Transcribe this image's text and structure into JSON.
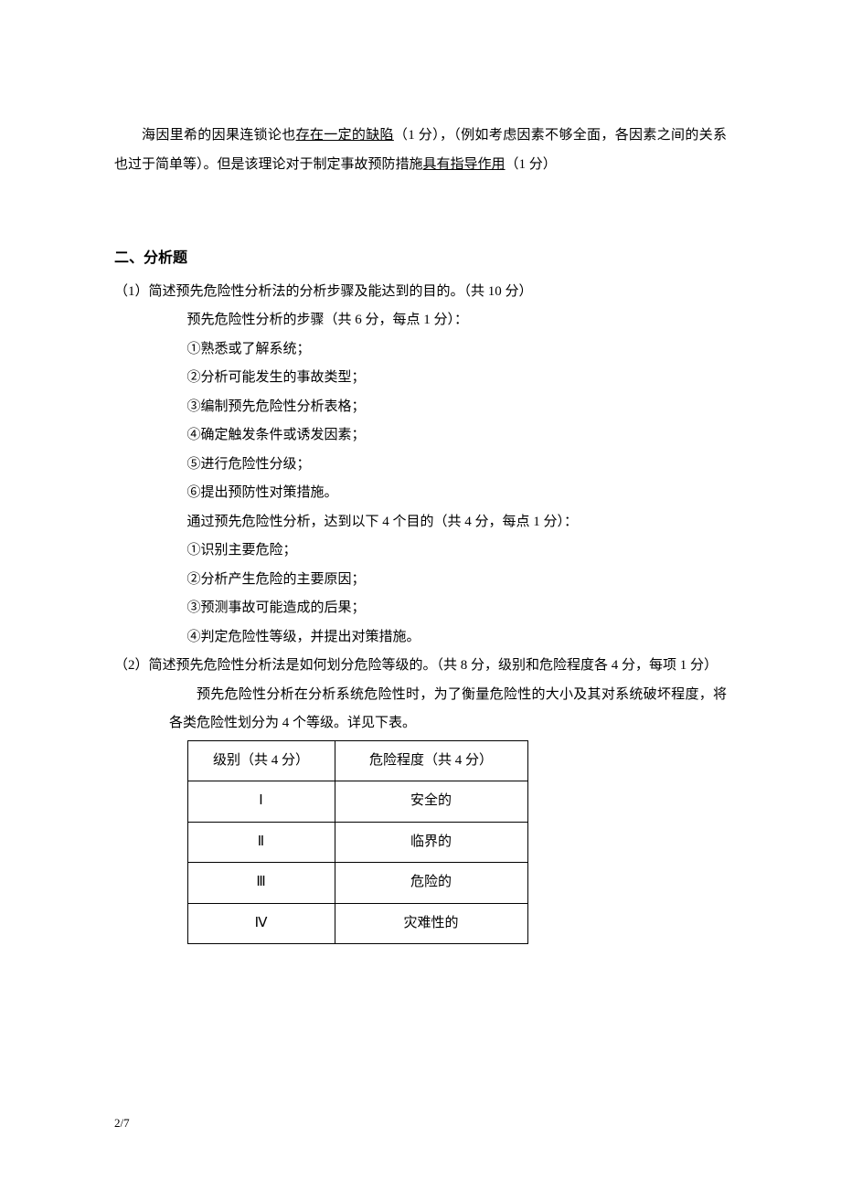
{
  "intro": {
    "prefix": "海因里希的因果连锁论也",
    "underline1": "存在一定的缺陷",
    "mid1": "（1 分），（例如考虑因素不够全面，各因素之间的关系也过于简单等）。但是该理论对于制定事故预防措施",
    "underline2": "具有指导作用",
    "tail": "（1 分）"
  },
  "section2_title": "二、分析题",
  "q1": {
    "prompt": "（1）简述预先危险性分析法的分析步骤及能达到的目的。（共 10 分）",
    "steps_header": "预先危险性分析的步骤（共 6 分，每点 1 分）：",
    "steps": [
      "①熟悉或了解系统；",
      "②分析可能发生的事故类型；",
      "③编制预先危险性分析表格；",
      "④确定触发条件或诱发因素；",
      "⑤进行危险性分级；",
      "⑥提出预防性对策措施。"
    ],
    "goals_header": "通过预先危险性分析，达到以下 4 个目的（共 4 分，每点 1 分）：",
    "goals": [
      "①识别主要危险；",
      "②分析产生危险的主要原因；",
      "③预测事故可能造成的后果；",
      "④判定危险性等级，并提出对策措施。"
    ]
  },
  "q2": {
    "prompt": "（2）简述预先危险性分析法是如何划分危险等级的。（共 8 分，级别和危险程度各 4 分，每项 1 分）",
    "body": "预先危险性分析在分析系统危险性时，为了衡量危险性的大小及其对系统破坏程度，将各类危险性划分为 4 个等级。详见下表。",
    "table": {
      "headers": [
        "级别（共 4 分）",
        "危险程度（共 4 分）"
      ],
      "rows": [
        [
          "Ⅰ",
          "安全的"
        ],
        [
          "Ⅱ",
          "临界的"
        ],
        [
          "Ⅲ",
          "危险的"
        ],
        [
          "Ⅳ",
          "灾难性的"
        ]
      ]
    }
  },
  "page_num": "2/7"
}
